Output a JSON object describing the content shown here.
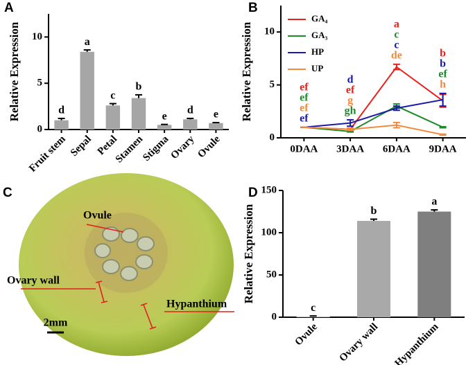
{
  "chart_data": [
    {
      "type": "bar",
      "panel": "A",
      "ylabel": "Relative Expression",
      "categories": [
        "Fruit stem",
        "Sepal",
        "Petal",
        "Stamen",
        "Stigma",
        "Ovary",
        "Ovule"
      ],
      "values": [
        1.0,
        8.4,
        2.6,
        3.4,
        0.5,
        1.1,
        0.7
      ],
      "errors": [
        0.2,
        0.2,
        0.2,
        0.35,
        0.05,
        0.1,
        0.05
      ],
      "letters": [
        "d",
        "a",
        "c",
        "b",
        "e",
        "d",
        "e"
      ],
      "color": "#a6a6a6",
      "ylim": [
        0,
        12.5
      ],
      "yticks": [
        0,
        5,
        10
      ]
    },
    {
      "type": "line",
      "panel": "B",
      "ylabel": "Relative Expression",
      "categories": [
        "0DAA",
        "3DAA",
        "6DAA",
        "9DAA"
      ],
      "series": [
        {
          "name": "GA₄",
          "color": "#e8211b",
          "values": [
            1.0,
            0.8,
            6.7,
            3.5
          ],
          "errors": [
            0,
            0.1,
            0.25,
            0.6
          ],
          "letters": [
            "ef",
            "ef",
            "a",
            "b"
          ]
        },
        {
          "name": "GA₃",
          "color": "#1e8a2a",
          "values": [
            1.0,
            0.6,
            3.0,
            1.0
          ],
          "errors": [
            0,
            0.05,
            0.2,
            0.05
          ],
          "letters": [
            "ef",
            "gh",
            "c",
            "ef"
          ]
        },
        {
          "name": "HP",
          "color": "#1a1aa8",
          "values": [
            1.0,
            1.4,
            2.8,
            3.6
          ],
          "errors": [
            0,
            0.3,
            0.2,
            0.6
          ],
          "letters": [
            "ef",
            "d",
            "c",
            "b"
          ]
        },
        {
          "name": "UP",
          "color": "#f28a3c",
          "values": [
            1.0,
            0.8,
            1.2,
            0.3
          ],
          "errors": [
            0,
            0.1,
            0.25,
            0.05
          ],
          "letters": [
            "ef",
            "g",
            "de",
            "h"
          ]
        }
      ],
      "ylim": [
        0,
        12.5
      ],
      "yticks": [
        0,
        5,
        10
      ]
    },
    {
      "type": "bar",
      "panel": "D",
      "ylabel": "Relative Expression",
      "categories": [
        "Ovule",
        "Ovary wall",
        "Hypanthium"
      ],
      "values": [
        1.0,
        114,
        125
      ],
      "errors": [
        0.5,
        2,
        2
      ],
      "letters": [
        "c",
        "b",
        "a"
      ],
      "colors": [
        "#cfcfcf",
        "#a9a9a9",
        "#7f7f7f"
      ],
      "ylim": [
        0,
        150
      ],
      "yticks": [
        0,
        50,
        100,
        150
      ]
    }
  ],
  "photo": {
    "panel": "C",
    "labels": [
      "Ovule",
      "Ovary wall",
      "Hypanthium"
    ],
    "scale_bar": "2mm"
  }
}
